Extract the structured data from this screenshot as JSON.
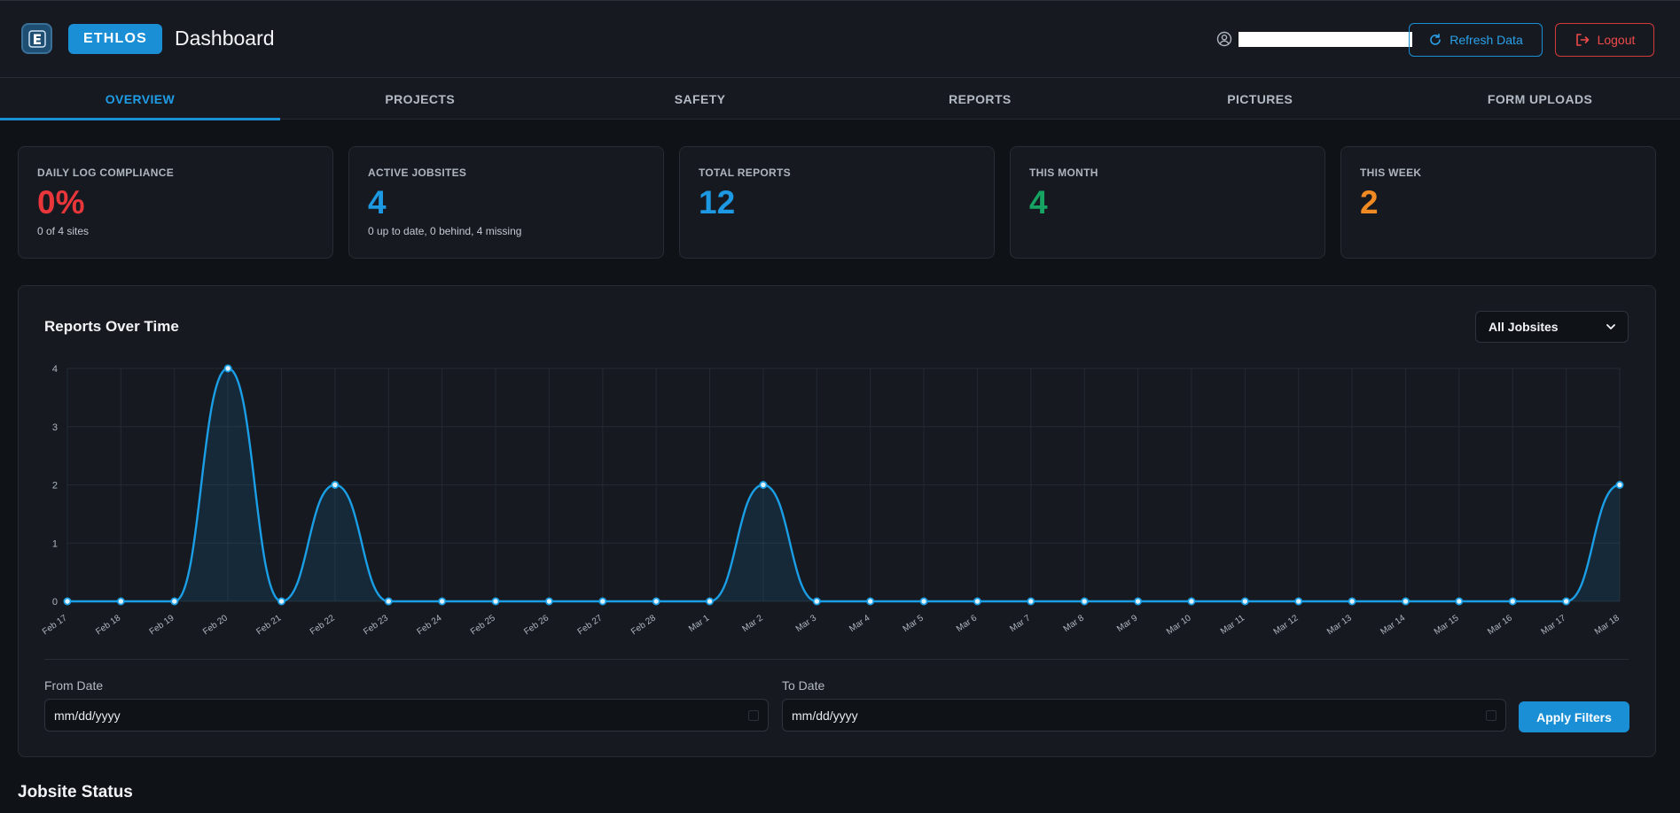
{
  "header": {
    "brand": "ETHLOS",
    "title": "Dashboard",
    "refresh_label": "Refresh Data",
    "logout_label": "Logout"
  },
  "tabs": [
    {
      "label": "OVERVIEW",
      "active": true
    },
    {
      "label": "PROJECTS"
    },
    {
      "label": "SAFETY"
    },
    {
      "label": "REPORTS"
    },
    {
      "label": "PICTURES"
    },
    {
      "label": "FORM UPLOADS"
    }
  ],
  "stats": [
    {
      "label": "DAILY LOG COMPLIANCE",
      "value": "0%",
      "sub": "0 of 4 sites",
      "color": "#e8363b"
    },
    {
      "label": "ACTIVE JOBSITES",
      "value": "4",
      "sub": "0 up to date, 0 behind, 4 missing",
      "color": "#1d98e3"
    },
    {
      "label": "TOTAL REPORTS",
      "value": "12",
      "sub": "",
      "color": "#1d98e3"
    },
    {
      "label": "THIS MONTH",
      "value": "4",
      "sub": "",
      "color": "#16a463"
    },
    {
      "label": "THIS WEEK",
      "value": "2",
      "sub": "",
      "color": "#f28a24"
    }
  ],
  "chart": {
    "title": "Reports Over Time",
    "jobsite_filter": "All Jobsites"
  },
  "chart_data": {
    "type": "line",
    "x": [
      "Feb 17",
      "Feb 18",
      "Feb 19",
      "Feb 20",
      "Feb 21",
      "Feb 22",
      "Feb 23",
      "Feb 24",
      "Feb 25",
      "Feb 26",
      "Feb 27",
      "Feb 28",
      "Mar 1",
      "Mar 2",
      "Mar 3",
      "Mar 4",
      "Mar 5",
      "Mar 6",
      "Mar 7",
      "Mar 8",
      "Mar 9",
      "Mar 10",
      "Mar 11",
      "Mar 12",
      "Mar 13",
      "Mar 14",
      "Mar 15",
      "Mar 16",
      "Mar 17",
      "Mar 18"
    ],
    "series": [
      {
        "values": [
          0,
          0,
          0,
          4,
          0,
          2,
          0,
          0,
          0,
          0,
          0,
          0,
          0,
          2,
          0,
          0,
          0,
          0,
          0,
          0,
          0,
          0,
          0,
          0,
          0,
          0,
          0,
          0,
          0,
          2
        ]
      }
    ],
    "ylim": [
      0,
      4
    ],
    "yticks": [
      "0",
      "1",
      "2",
      "3",
      "4"
    ],
    "grid": true,
    "color": "#1a9ee6"
  },
  "filters": {
    "from_label": "From Date",
    "from_placeholder": "mm/dd/yyyy",
    "to_label": "To Date",
    "to_placeholder": "mm/dd/yyyy",
    "apply_label": "Apply Filters"
  },
  "section": {
    "jobsite_status": "Jobsite Status"
  }
}
